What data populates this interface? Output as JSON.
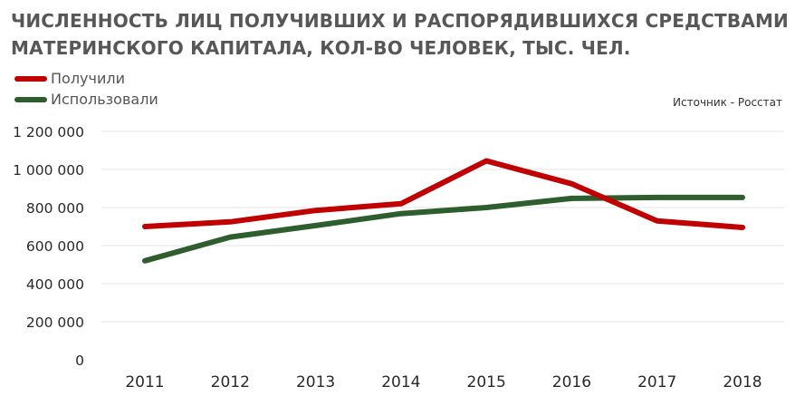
{
  "chart_data": {
    "type": "line",
    "title_lines": [
      "ЧИСЛЕННОСТЬ ЛИЦ ПОЛУЧИВШИХ И РАСПОРЯДИВШИХСЯ СРЕДСТВАМИ",
      "МАТЕРИНСКОГО КАПИТАЛА, КОЛ-ВО ЧЕЛОВЕК, ТЫС. ЧЕЛ."
    ],
    "source": "Источник - Росстат",
    "x": [
      "2011",
      "2012",
      "2013",
      "2014",
      "2015",
      "2016",
      "2017",
      "2018"
    ],
    "ylim": [
      0,
      1200000
    ],
    "yticks": [
      0,
      200000,
      400000,
      600000,
      800000,
      1000000,
      1200000
    ],
    "ytick_labels": [
      "0",
      "200 000",
      "400 000",
      "600 000",
      "800 000",
      "1 000 000",
      "1 200 000"
    ],
    "grid": true,
    "legend_position": "top-left",
    "series": [
      {
        "name": "Получили",
        "color": "#c00000",
        "values": [
          700000,
          725000,
          785000,
          820000,
          1045000,
          925000,
          730000,
          695000
        ]
      },
      {
        "name": "Использовали",
        "color": "#2e5e2e",
        "values": [
          520000,
          645000,
          705000,
          768000,
          800000,
          848000,
          853000,
          853000
        ]
      }
    ]
  }
}
